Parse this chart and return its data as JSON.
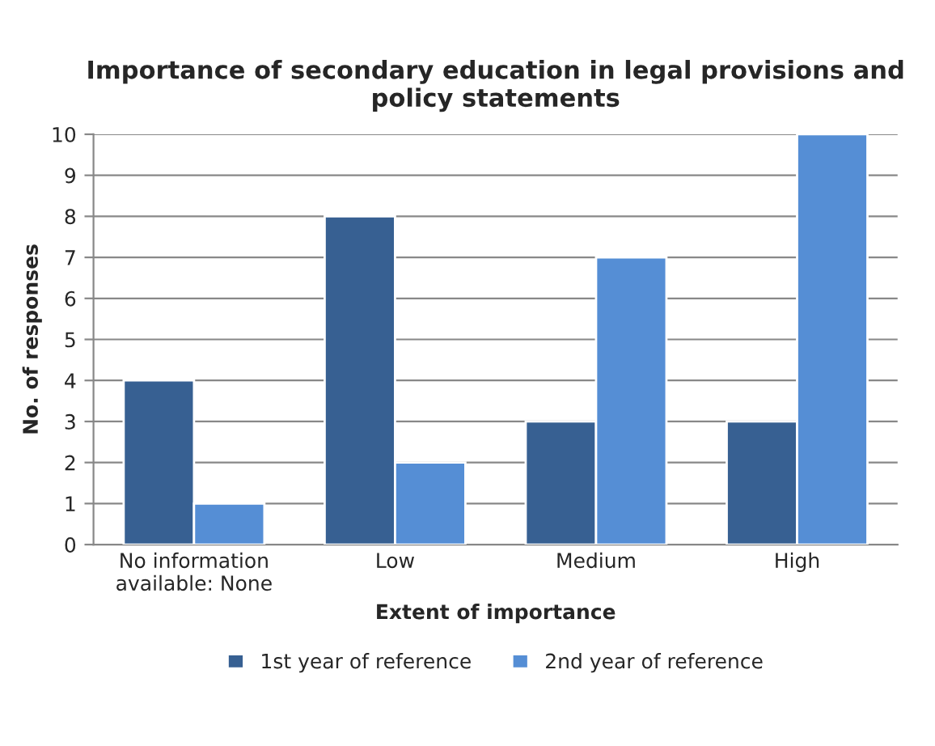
{
  "chart_data": {
    "type": "bar",
    "title": "Importance of secondary education in legal provisions and policy statements",
    "xlabel": "Extent of importance",
    "ylabel": "No. of responses",
    "categories": [
      "No information\navailable: None",
      "Low",
      "Medium",
      "High"
    ],
    "series": [
      {
        "name": "1st year of reference",
        "color": "#376092",
        "values": [
          4,
          8,
          3,
          3
        ]
      },
      {
        "name": "2nd year of reference",
        "color": "#558ed5",
        "values": [
          1,
          2,
          7,
          10
        ]
      }
    ],
    "ylim": [
      0,
      10
    ],
    "yticks": [
      0,
      1,
      2,
      3,
      4,
      5,
      6,
      7,
      8,
      9,
      10
    ],
    "grid": "y",
    "legend": "bottom"
  }
}
